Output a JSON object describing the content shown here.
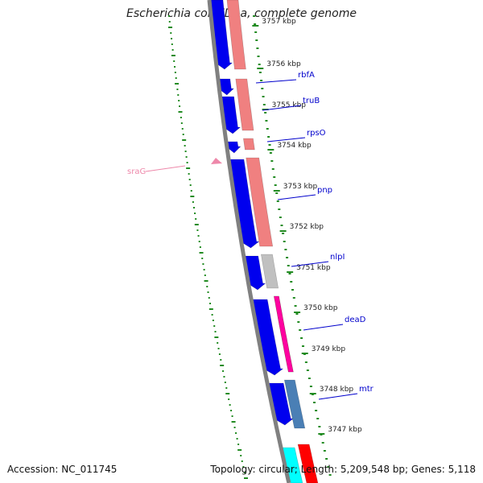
{
  "title": "Escherichia coli ED1a, complete genome",
  "footer": {
    "accession": "Accession: NC_011745",
    "topology": "Topology: circular; Length: 5,209,548 bp; Genes: 5,118"
  },
  "colors": {
    "backbone": "#808080",
    "forward_gene": "#0000ee",
    "reverse_gene": "#f08080",
    "grey_gene": "#c0c0c0",
    "steel_gene": "#4a7fb5",
    "orange_gene": "#ff8c00",
    "magenta_gene": "#ff00a0",
    "cyan_gene": "#00ffff",
    "red_gene": "#ff0000",
    "tick": "#228B22",
    "label_line": "#0000cc",
    "rna_label": "#ee88aa"
  },
  "ticks": [
    {
      "label": "3757 kbp"
    },
    {
      "label": "3756 kbp"
    },
    {
      "label": "3755 kbp"
    },
    {
      "label": "3754 kbp"
    },
    {
      "label": "3753 kbp"
    },
    {
      "label": "3752 kbp"
    },
    {
      "label": "3751 kbp"
    },
    {
      "label": "3750 kbp"
    },
    {
      "label": "3749 kbp"
    },
    {
      "label": "3748 kbp"
    },
    {
      "label": "3747 kbp"
    }
  ],
  "gene_labels": [
    {
      "name": "rbfA"
    },
    {
      "name": "truB"
    },
    {
      "name": "rpsO"
    },
    {
      "name": "pnp"
    },
    {
      "name": "nlpI"
    },
    {
      "name": "deaD"
    },
    {
      "name": "mtr"
    },
    {
      "name": "sraG"
    }
  ]
}
